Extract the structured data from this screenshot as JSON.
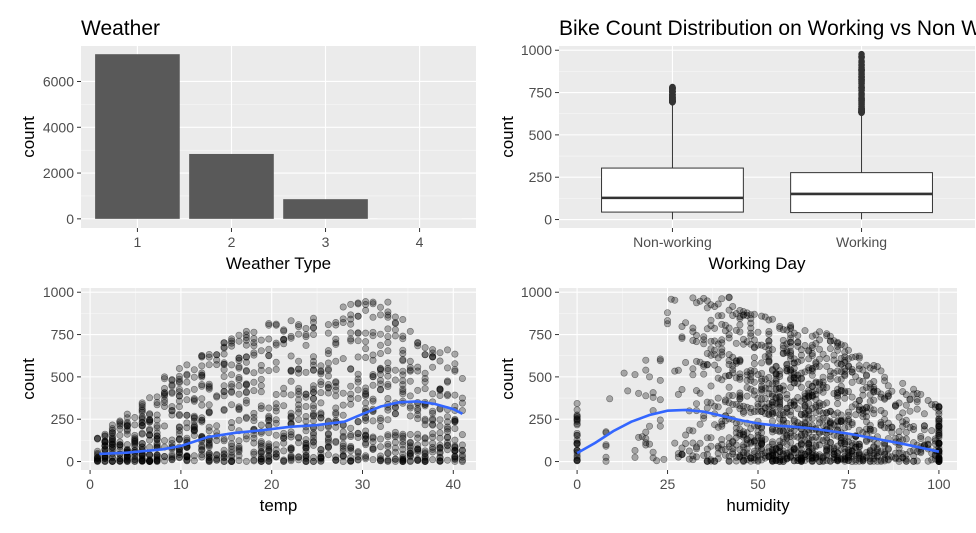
{
  "chart_data": [
    {
      "type": "bar",
      "title": "Weather",
      "xlabel": "Weather Type",
      "ylabel": "count",
      "categories": [
        "1",
        "2",
        "3",
        "4"
      ],
      "values": [
        7192,
        2834,
        859,
        1
      ],
      "ylim": [
        0,
        7550
      ],
      "yticks": [
        0,
        2000,
        4000,
        6000
      ],
      "color": "#595959",
      "grid": true
    },
    {
      "type": "boxplot",
      "title": "Bike Count Distribution on Working vs Non Working Days",
      "xlabel": "Working Day",
      "ylabel": "count",
      "categories": [
        "Non-working",
        "Working"
      ],
      "boxes": [
        {
          "category": "Non-working",
          "q1": 44,
          "median": 128,
          "q3": 304,
          "whisker_low": 1,
          "whisker_high": 693,
          "outlier_max": 783
        },
        {
          "category": "Working",
          "q1": 41,
          "median": 151,
          "q3": 277,
          "whisker_low": 1,
          "whisker_high": 631,
          "outlier_max": 977
        }
      ],
      "ylim": [
        -50,
        1025
      ],
      "yticks": [
        0,
        250,
        500,
        750,
        1000
      ],
      "grid": true
    },
    {
      "type": "scatter",
      "xlabel": "temp",
      "ylabel": "count",
      "xlim": [
        -1,
        42.5
      ],
      "ylim": [
        -50,
        1025
      ],
      "xticks": [
        0,
        10,
        20,
        30,
        40
      ],
      "yticks": [
        0,
        250,
        500,
        750,
        1000
      ],
      "point_color": "#000000",
      "point_opacity": 0.3,
      "smooth": {
        "color": "#3366FF",
        "x": [
          1,
          4,
          8,
          10,
          13,
          16,
          19,
          22,
          25,
          28,
          30,
          32,
          34,
          36,
          38,
          40,
          41
        ],
        "y": [
          45,
          52,
          72,
          92,
          145,
          170,
          185,
          205,
          215,
          235,
          280,
          325,
          350,
          355,
          340,
          310,
          282
        ]
      },
      "grid": true
    },
    {
      "type": "scatter",
      "xlabel": "humidity",
      "ylabel": "count",
      "xlim": [
        -5,
        105
      ],
      "ylim": [
        -50,
        1025
      ],
      "xticks": [
        0,
        25,
        50,
        75,
        100
      ],
      "yticks": [
        0,
        250,
        500,
        750,
        1000
      ],
      "point_color": "#000000",
      "point_opacity": 0.3,
      "smooth": {
        "color": "#3366FF",
        "x": [
          0,
          5,
          10,
          15,
          20,
          25,
          30,
          35,
          40,
          45,
          50,
          55,
          60,
          65,
          70,
          75,
          80,
          85,
          90,
          95,
          100
        ],
        "y": [
          50,
          110,
          180,
          235,
          275,
          300,
          305,
          295,
          270,
          245,
          225,
          212,
          205,
          195,
          180,
          165,
          145,
          125,
          105,
          82,
          58
        ]
      },
      "grid": true
    }
  ]
}
